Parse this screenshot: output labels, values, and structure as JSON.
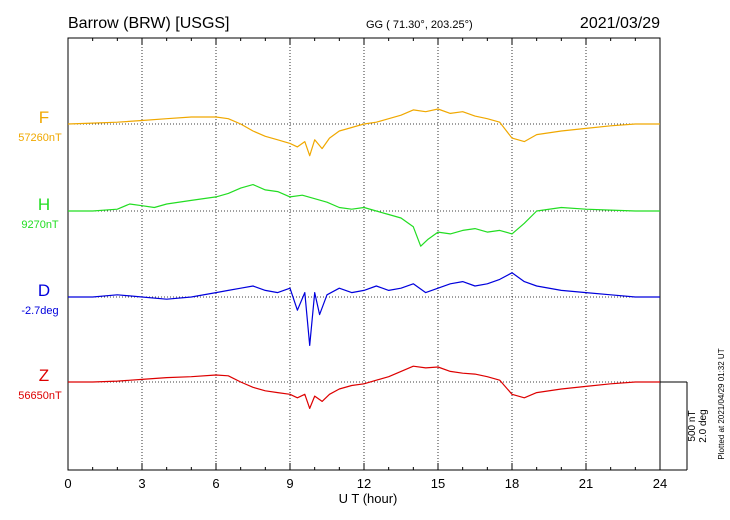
{
  "chart_data": {
    "type": "line",
    "title_left": "Barrow (BRW)  [USGS]",
    "title_center": "GG ( 71.30°, 203.25°)",
    "title_right": "2021/03/29",
    "xlabel": "U T (hour)",
    "xlim": [
      0,
      24
    ],
    "xticks": [
      "0",
      "3",
      "6",
      "9",
      "12",
      "15",
      "18",
      "21",
      "24"
    ],
    "grid": true,
    "scale_labels": [
      "500 nT",
      "2.0 deg"
    ],
    "plotted_note": "Plotted at 2021/04/29 01:32 UT",
    "series": [
      {
        "name": "F",
        "baseline_label": "57260nT",
        "color": "#f0a800",
        "unit": "nT",
        "x": [
          0,
          1,
          2,
          3,
          4,
          5,
          6,
          6.5,
          7,
          7.5,
          8,
          8.5,
          9,
          9.3,
          9.6,
          9.8,
          10,
          10.3,
          10.6,
          11,
          11.5,
          12,
          12.5,
          13,
          13.5,
          14,
          14.5,
          15,
          15.5,
          16,
          16.5,
          17,
          17.5,
          18,
          18.5,
          19,
          20,
          21,
          22,
          23,
          24
        ],
        "y": [
          0,
          5,
          10,
          20,
          30,
          40,
          40,
          30,
          0,
          -40,
          -70,
          -90,
          -110,
          -130,
          -100,
          -180,
          -90,
          -140,
          -80,
          -40,
          -20,
          0,
          10,
          30,
          50,
          80,
          70,
          85,
          60,
          70,
          45,
          30,
          10,
          -80,
          -100,
          -60,
          -40,
          -25,
          -10,
          0,
          0
        ]
      },
      {
        "name": "H",
        "baseline_label": "9270nT",
        "color": "#22dd22",
        "unit": "nT",
        "x": [
          0,
          1,
          2,
          2.5,
          3,
          3.5,
          4,
          5,
          6,
          6.5,
          7,
          7.5,
          8,
          8.5,
          9,
          9.5,
          10,
          10.5,
          11,
          11.5,
          12,
          12.5,
          13,
          13.5,
          14,
          14.3,
          14.6,
          15,
          15.5,
          16,
          16.5,
          17,
          17.5,
          18,
          18.5,
          19,
          20,
          21,
          22,
          23,
          24
        ],
        "y": [
          0,
          0,
          10,
          40,
          30,
          20,
          40,
          60,
          80,
          100,
          130,
          150,
          120,
          110,
          80,
          90,
          70,
          50,
          20,
          10,
          20,
          0,
          -20,
          -40,
          -90,
          -200,
          -160,
          -120,
          -130,
          -110,
          -100,
          -120,
          -110,
          -130,
          -70,
          0,
          20,
          10,
          5,
          0,
          0
        ]
      },
      {
        "name": "D",
        "baseline_label": "-2.7deg",
        "color": "#0000dd",
        "unit": "deg",
        "x": [
          0,
          1,
          2,
          3,
          4,
          5,
          6,
          6.5,
          7,
          7.5,
          8,
          8.5,
          9,
          9.3,
          9.6,
          9.8,
          10,
          10.2,
          10.5,
          11,
          11.5,
          12,
          12.5,
          13,
          13.5,
          14,
          14.5,
          15,
          15.5,
          16,
          16.5,
          17,
          17.5,
          18,
          18.5,
          19,
          20,
          21,
          22,
          23,
          24
        ],
        "y": [
          0,
          0,
          0.05,
          0,
          -0.05,
          0,
          0.1,
          0.15,
          0.2,
          0.25,
          0.15,
          0.1,
          0.2,
          -0.3,
          0.1,
          -1.1,
          0.1,
          -0.4,
          0.05,
          0.2,
          0.1,
          0.15,
          0.25,
          0.15,
          0.2,
          0.3,
          0.1,
          0.2,
          0.3,
          0.35,
          0.25,
          0.3,
          0.4,
          0.55,
          0.35,
          0.25,
          0.15,
          0.1,
          0.05,
          0,
          0
        ]
      },
      {
        "name": "Z",
        "baseline_label": "56650nT",
        "color": "#dd0000",
        "unit": "nT",
        "x": [
          0,
          1,
          2,
          3,
          4,
          5,
          6,
          6.5,
          7,
          7.5,
          8,
          8.5,
          9,
          9.3,
          9.6,
          9.8,
          10,
          10.3,
          10.6,
          11,
          11.5,
          12,
          12.5,
          13,
          13.5,
          14,
          14.5,
          15,
          15.5,
          16,
          16.5,
          17,
          17.5,
          18,
          18.5,
          19,
          20,
          21,
          22,
          23,
          24
        ],
        "y": [
          0,
          0,
          5,
          15,
          25,
          30,
          40,
          35,
          0,
          -30,
          -50,
          -60,
          -70,
          -90,
          -70,
          -150,
          -80,
          -110,
          -70,
          -40,
          -20,
          -10,
          10,
          30,
          60,
          90,
          80,
          85,
          60,
          50,
          45,
          30,
          10,
          -70,
          -90,
          -60,
          -40,
          -25,
          -10,
          0,
          0
        ]
      }
    ]
  }
}
